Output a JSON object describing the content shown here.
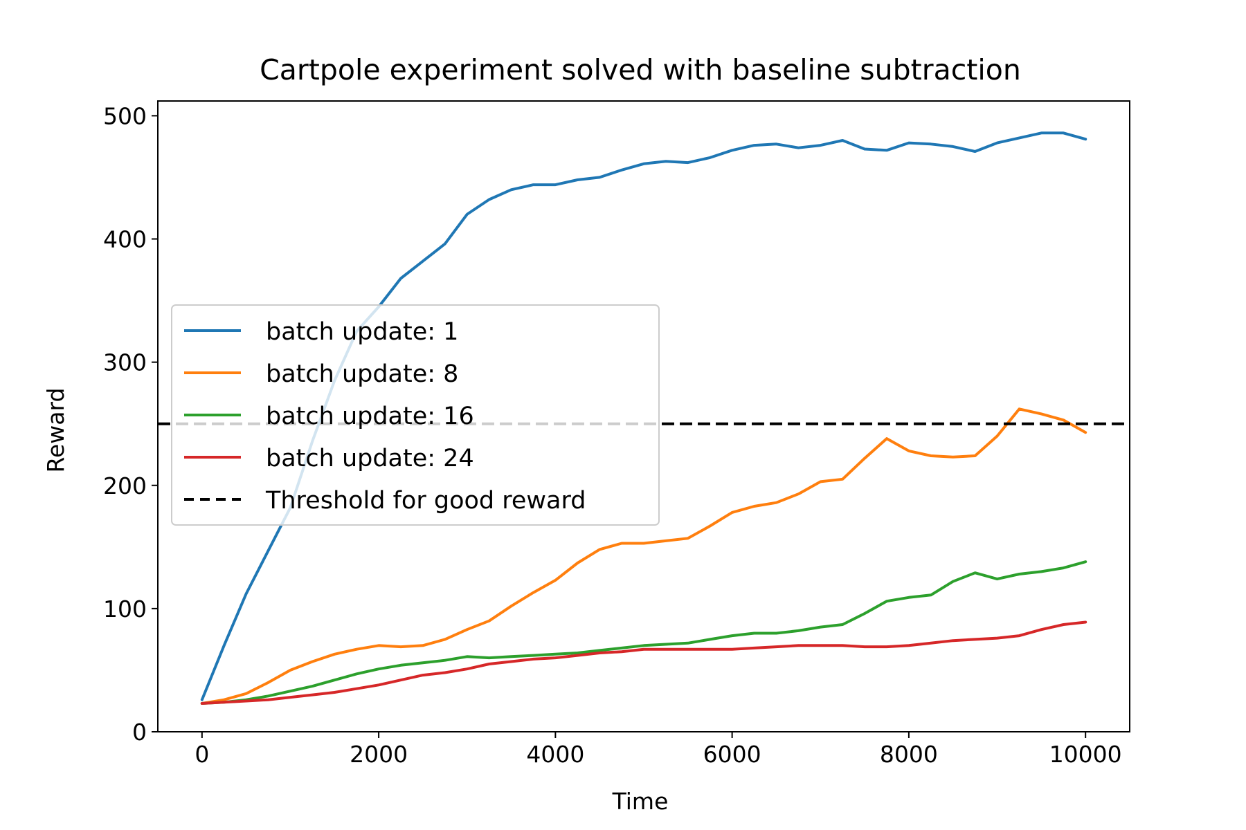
{
  "chart_data": {
    "type": "line",
    "title": "Cartpole experiment solved with baseline subtraction",
    "xlabel": "Time",
    "ylabel": "Reward",
    "xlim": [
      -500,
      10500
    ],
    "ylim": [
      0,
      512
    ],
    "xticks": [
      0,
      2000,
      4000,
      6000,
      8000,
      10000
    ],
    "xtick_labels": [
      "0",
      "2000",
      "4000",
      "6000",
      "8000",
      "10000"
    ],
    "yticks": [
      0,
      100,
      200,
      300,
      400,
      500
    ],
    "ytick_labels": [
      "0",
      "100",
      "200",
      "300",
      "400",
      "500"
    ],
    "grid": false,
    "legend_position": "center-left",
    "x": [
      0,
      250,
      500,
      750,
      1000,
      1250,
      1500,
      1750,
      2000,
      2250,
      2500,
      2750,
      3000,
      3250,
      3500,
      3750,
      4000,
      4250,
      4500,
      4750,
      5000,
      5250,
      5500,
      5750,
      6000,
      6250,
      6500,
      6750,
      7000,
      7250,
      7500,
      7750,
      8000,
      8250,
      8500,
      8750,
      9000,
      9250,
      9500,
      9750,
      10000
    ],
    "series": [
      {
        "name": "batch update: 1",
        "color": "#1f77b4",
        "style": "solid",
        "values": [
          26,
          70,
          112,
          147,
          182,
          236,
          285,
          325,
          345,
          368,
          382,
          396,
          420,
          432,
          440,
          444,
          444,
          448,
          450,
          456,
          461,
          463,
          462,
          466,
          472,
          476,
          477,
          474,
          476,
          480,
          473,
          472,
          478,
          477,
          475,
          471,
          478,
          482,
          486,
          486,
          481
        ]
      },
      {
        "name": "batch update: 8",
        "color": "#ff7f0e",
        "style": "solid",
        "values": [
          23,
          26,
          31,
          40,
          50,
          57,
          63,
          67,
          70,
          69,
          70,
          75,
          83,
          90,
          102,
          113,
          123,
          137,
          148,
          153,
          153,
          155,
          157,
          167,
          178,
          183,
          186,
          193,
          203,
          205,
          222,
          238,
          228,
          224,
          223,
          224,
          240,
          262,
          258,
          253,
          243
        ]
      },
      {
        "name": "batch update: 16",
        "color": "#2ca02c",
        "style": "solid",
        "values": [
          23,
          24,
          26,
          29,
          33,
          37,
          42,
          47,
          51,
          54,
          56,
          58,
          61,
          60,
          61,
          62,
          63,
          64,
          66,
          68,
          70,
          71,
          72,
          75,
          78,
          80,
          80,
          82,
          85,
          87,
          96,
          106,
          109,
          111,
          122,
          129,
          124,
          128,
          130,
          133,
          138
        ]
      },
      {
        "name": "batch update: 24",
        "color": "#d62728",
        "style": "solid",
        "values": [
          23,
          24,
          25,
          26,
          28,
          30,
          32,
          35,
          38,
          42,
          46,
          48,
          51,
          55,
          57,
          59,
          60,
          62,
          64,
          65,
          67,
          67,
          67,
          67,
          67,
          68,
          69,
          70,
          70,
          70,
          69,
          69,
          70,
          72,
          74,
          75,
          76,
          78,
          83,
          87,
          89
        ]
      },
      {
        "name": "Threshold for good reward",
        "color": "#000000",
        "style": "dashed",
        "hline": 250
      }
    ]
  }
}
